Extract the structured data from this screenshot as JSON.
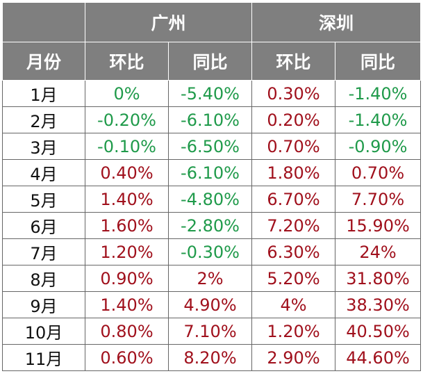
{
  "header": {
    "cities": [
      "广州",
      "深圳"
    ],
    "columns": [
      "月份",
      "环比",
      "同比",
      "环比",
      "同比"
    ]
  },
  "positive_color": "#a0101c",
  "negative_color": "#1f9a4a",
  "table": {
    "rows": [
      [
        "1月",
        "0%",
        "-5.40%",
        "0.30%",
        "-1.40%"
      ],
      [
        "2月",
        "-0.20%",
        "-6.10%",
        "0.20%",
        "-1.40%"
      ],
      [
        "3月",
        "-0.10%",
        "-6.50%",
        "0.70%",
        "-0.90%"
      ],
      [
        "4月",
        "0.40%",
        "-6.10%",
        "1.80%",
        "0.70%"
      ],
      [
        "5月",
        "1.40%",
        "-4.80%",
        "6.70%",
        "7.70%"
      ],
      [
        "6月",
        "1.60%",
        "-2.80%",
        "7.20%",
        "15.90%"
      ],
      [
        "7月",
        "1.20%",
        "-0.30%",
        "6.30%",
        "24%"
      ],
      [
        "8月",
        "0.90%",
        "2%",
        "5.20%",
        "31.80%"
      ],
      [
        "9月",
        "1.40%",
        "4.90%",
        "4%",
        "38.30%"
      ],
      [
        "10月",
        "0.80%",
        "7.10%",
        "1.20%",
        "40.50%"
      ],
      [
        "11月",
        "0.60%",
        "8.20%",
        "2.90%",
        "44.60%"
      ]
    ]
  }
}
